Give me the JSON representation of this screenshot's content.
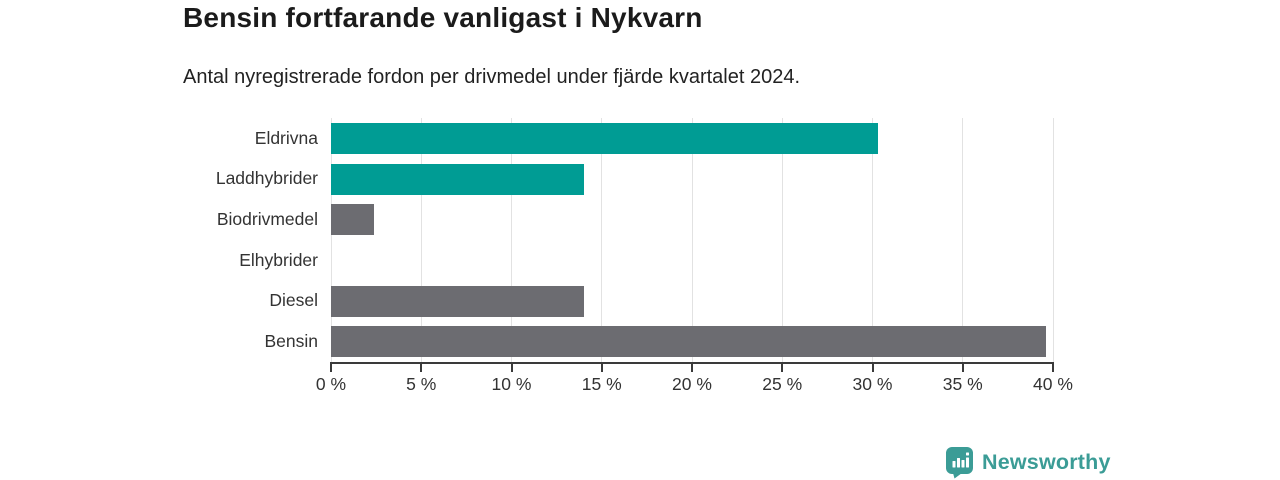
{
  "header": {
    "title": "Bensin fortfarande vanligast i Nykvarn",
    "subtitle": "Antal nyregistrerade fordon per drivmedel under fjärde kvartalet 2024."
  },
  "chart_data": {
    "type": "bar",
    "orientation": "horizontal",
    "title": "Bensin fortfarande vanligast i Nykvarn",
    "subtitle": "Antal nyregistrerade fordon per drivmedel under fjärde kvartalet 2024.",
    "categories": [
      "Eldrivna",
      "Laddhybrider",
      "Biodrivmedel",
      "Elhybrider",
      "Diesel",
      "Bensin"
    ],
    "values": [
      30.3,
      14.0,
      2.4,
      0,
      14.0,
      39.6
    ],
    "unit": "%",
    "bar_colors": [
      "#009c94",
      "#009c94",
      "#6c6c71",
      "#6c6c71",
      "#6c6c71",
      "#6c6c71"
    ],
    "highlight_color": "#009c94",
    "default_color": "#6c6c71",
    "xlim": [
      0,
      40
    ],
    "x_ticks": [
      0,
      5,
      10,
      15,
      20,
      25,
      30,
      35,
      40
    ],
    "x_tick_labels": [
      "0 %",
      "5 %",
      "10 %",
      "15 %",
      "20 %",
      "25 %",
      "30 %",
      "35 %",
      "40 %"
    ],
    "grid": "vertical",
    "legend": "none"
  },
  "branding": {
    "logo_text": "Newsworthy",
    "logo_color": "#3b9c96",
    "icon": "newsworthy-pin-barchart-icon"
  }
}
